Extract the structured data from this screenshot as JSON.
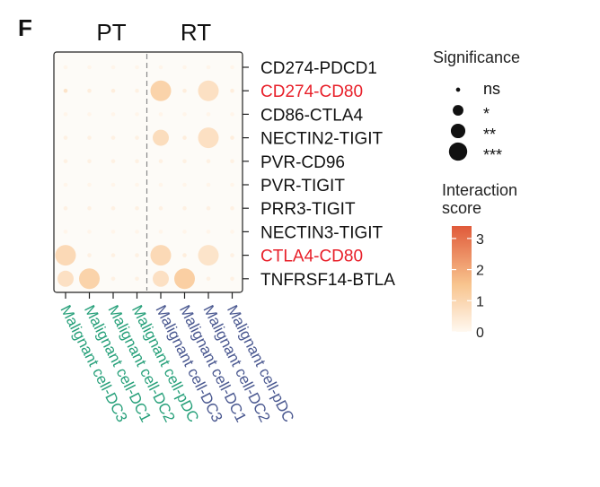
{
  "panel_label": "F",
  "chart_data": {
    "type": "dotplot",
    "title": "",
    "groups": [
      {
        "name": "PT",
        "columns": [
          0,
          1,
          2,
          3
        ]
      },
      {
        "name": "RT",
        "columns": [
          4,
          5,
          6,
          7
        ]
      }
    ],
    "x_labels": [
      "Malignant cell-DC3",
      "Malignant cell-DC1",
      "Malignant cell-DC2",
      "Malignant cell-pDC",
      "Malignant cell-DC3",
      "Malignant cell-DC1",
      "Malignant cell-DC2",
      "Malignant cell-pDC"
    ],
    "y_labels": [
      "CD274-PDCD1",
      "CD274-CD80",
      "CD86-CTLA4",
      "NECTIN2-TIGIT",
      "PVR-CD96",
      "PVR-TIGIT",
      "PRR3-TIGIT",
      "NECTIN3-TIGIT",
      "CTLA4-CD80",
      "TNFRSF14-BTLA"
    ],
    "highlighted_rows": [
      "CD274-CD80",
      "CTLA4-CD80"
    ],
    "score": [
      [
        0.1,
        0.1,
        0.1,
        0.1,
        0.1,
        0.1,
        0.1,
        0.1
      ],
      [
        0.6,
        0.3,
        0.3,
        0.2,
        1.1,
        0.3,
        0.7,
        0.3
      ],
      [
        0.1,
        0.1,
        0.1,
        0.1,
        0.1,
        0.1,
        0.1,
        0.1
      ],
      [
        0.2,
        0.2,
        0.2,
        0.2,
        0.8,
        0.3,
        0.7,
        0.3
      ],
      [
        0.2,
        0.2,
        0.2,
        0.2,
        0.2,
        0.2,
        0.2,
        0.2
      ],
      [
        0.1,
        0.1,
        0.1,
        0.1,
        0.1,
        0.1,
        0.1,
        0.1
      ],
      [
        0.2,
        0.2,
        0.2,
        0.2,
        0.2,
        0.2,
        0.2,
        0.2
      ],
      [
        0.1,
        0.1,
        0.1,
        0.1,
        0.1,
        0.1,
        0.1,
        0.1
      ],
      [
        0.9,
        0.2,
        0.2,
        0.2,
        0.9,
        0.3,
        0.6,
        0.2
      ],
      [
        0.7,
        1.1,
        0.2,
        0.2,
        0.7,
        1.2,
        0.2,
        0.2
      ]
    ],
    "significance": [
      [
        0,
        0,
        0,
        0,
        0,
        0,
        0,
        0
      ],
      [
        0,
        0,
        0,
        0,
        3,
        0,
        3,
        0
      ],
      [
        0,
        0,
        0,
        0,
        0,
        0,
        0,
        0
      ],
      [
        0,
        0,
        0,
        0,
        2,
        0,
        3,
        0
      ],
      [
        0,
        0,
        0,
        0,
        0,
        0,
        0,
        0
      ],
      [
        0,
        0,
        0,
        0,
        0,
        0,
        0,
        0
      ],
      [
        0,
        0,
        0,
        0,
        0,
        0,
        0,
        0
      ],
      [
        0,
        0,
        0,
        0,
        0,
        0,
        0,
        0
      ],
      [
        3,
        0,
        0,
        0,
        3,
        0,
        3,
        0
      ],
      [
        2,
        3,
        0,
        0,
        2,
        3,
        0,
        0
      ]
    ],
    "size_legend": {
      "title": "Significance",
      "levels": [
        "ns",
        "*",
        "**",
        "***"
      ]
    },
    "color_legend": {
      "title_line1": "Interaction",
      "title_line2": "score",
      "range": [
        0,
        3.4
      ],
      "ticks": [
        "3",
        "2",
        "1",
        "0"
      ],
      "tick_values": [
        3,
        2,
        1,
        0
      ],
      "low_color": "#fff8f0",
      "high_color": "#e05a3a"
    },
    "colors": {
      "highlight_label": "#e8202a",
      "pt_label": "#27a07a",
      "rt_label": "#4a5890",
      "panel_bg": "#fdfbf7",
      "axis": "#222222",
      "divider": "#888888"
    }
  }
}
